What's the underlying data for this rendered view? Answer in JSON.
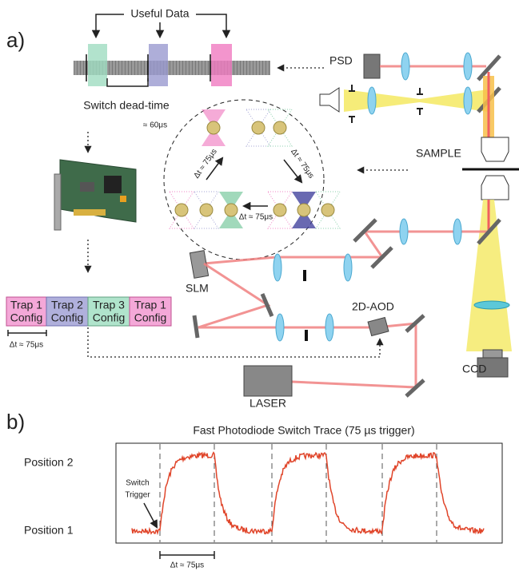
{
  "panel_a": {
    "label": "a)",
    "useful_data": "Useful Data",
    "dead_time": "Switch dead-time",
    "dead_time_value": "≈ 60μs",
    "components": {
      "psd": "PSD",
      "sample": "SAMPLE",
      "slm": "SLM",
      "aod": "2D-AOD",
      "laser": "LASER",
      "ccd": "CCD"
    },
    "circle_intervals": [
      "Δt ≈ 75μs",
      "Δt ≈ 75μs",
      "Δt ≈ 75μs"
    ],
    "configs": [
      {
        "line1": "Trap 1",
        "line2": "Config"
      },
      {
        "line1": "Trap 2",
        "line2": "Config"
      },
      {
        "line1": "Trap 3",
        "line2": "Config"
      },
      {
        "line1": "Trap 1",
        "line2": "Config"
      }
    ],
    "config_interval": "Δt ≈ 75μs"
  },
  "panel_b": {
    "label": "b)",
    "title": "Fast Photodiode Switch Trace (75 µs trigger)",
    "position_high": "Position 2",
    "position_low": "Position 1",
    "trigger_line1": "Switch",
    "trigger_line2": "Trigger",
    "interval": "Δt ≈ 75μs"
  }
}
